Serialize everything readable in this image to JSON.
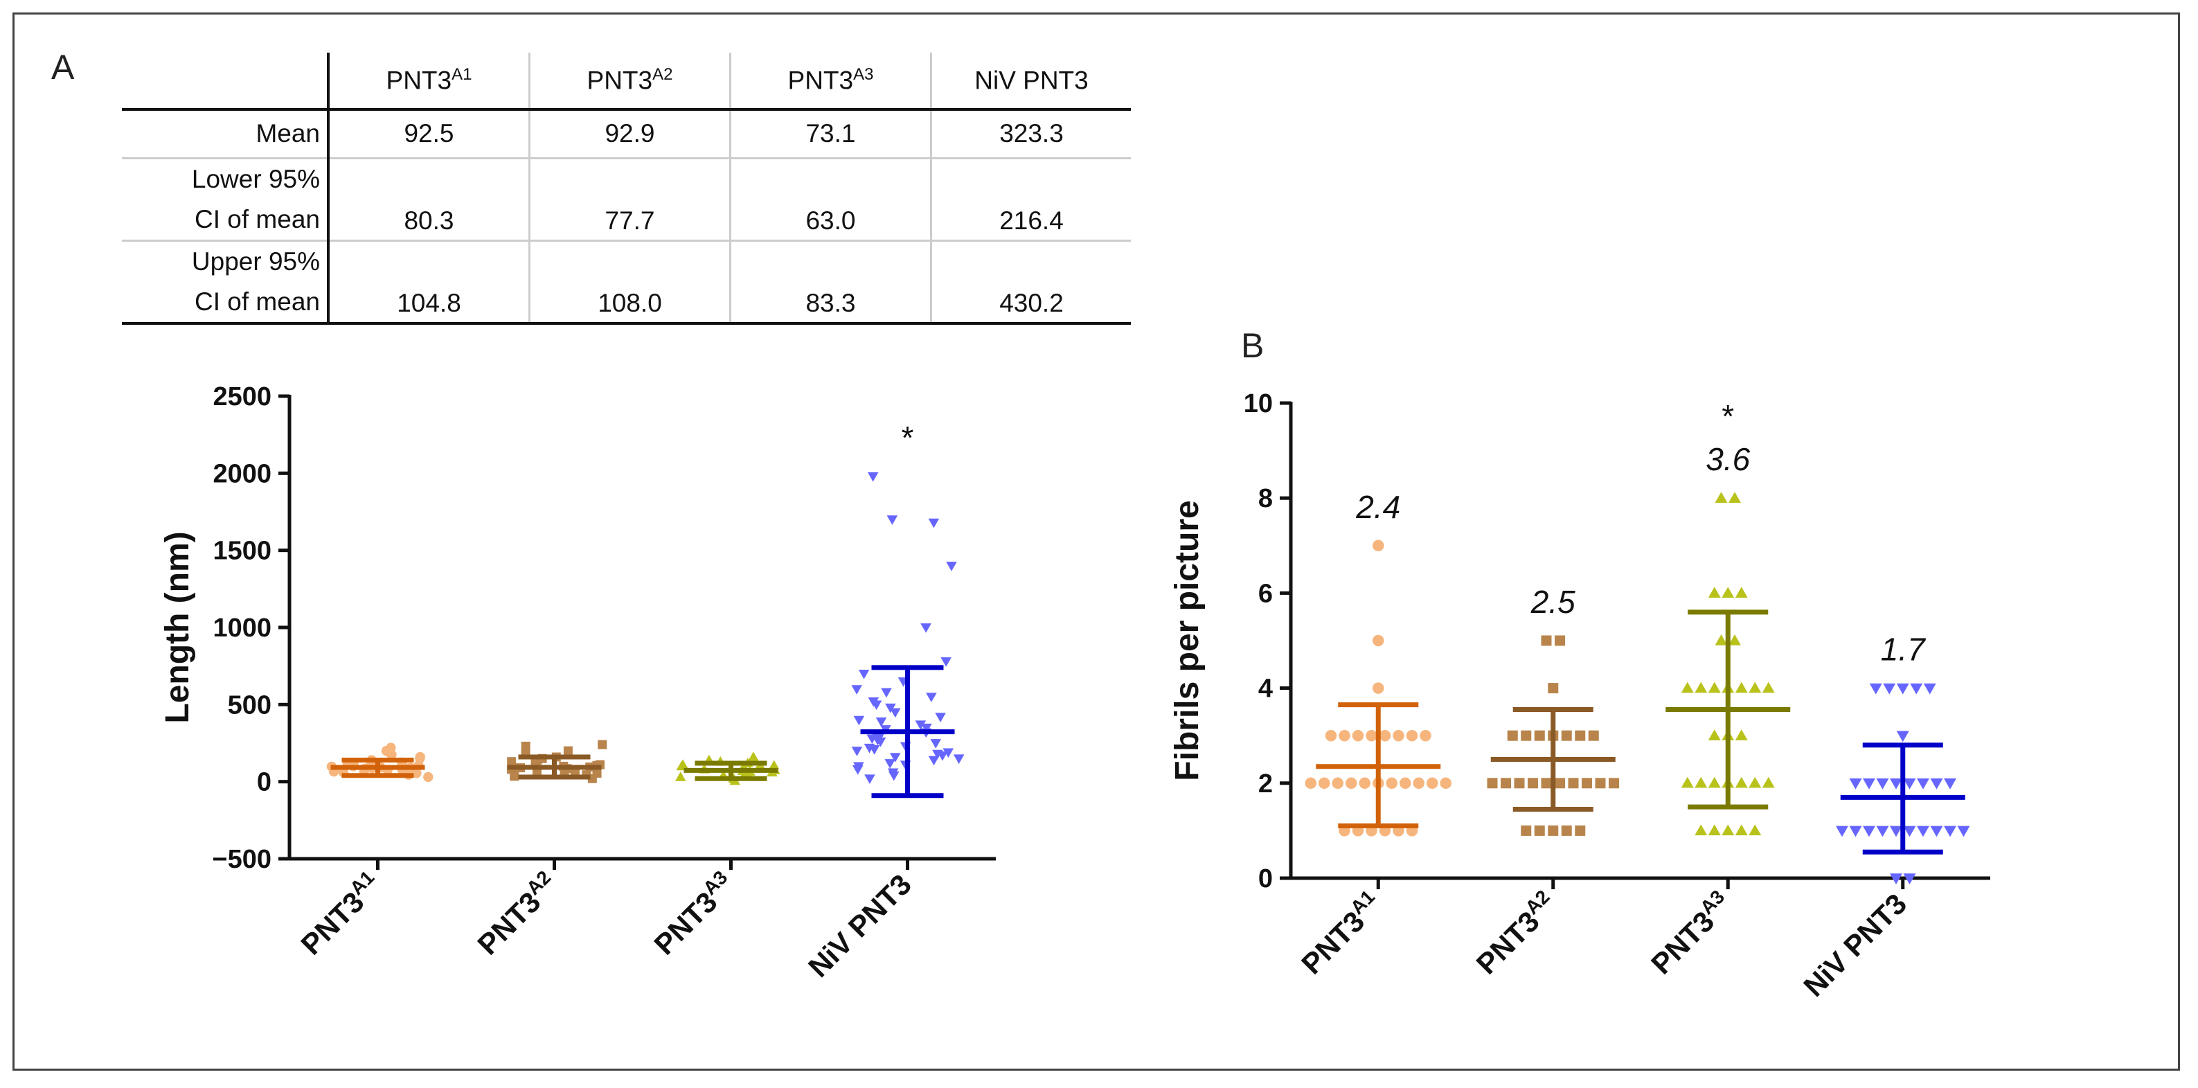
{
  "panels": {
    "a_label": "A",
    "b_label": "B"
  },
  "table": {
    "columns": [
      {
        "base": "PNT3",
        "sup": "A1"
      },
      {
        "base": "PNT3",
        "sup": "A2"
      },
      {
        "base": "PNT3",
        "sup": "A3"
      },
      {
        "base": "NiV PNT3",
        "sup": ""
      }
    ],
    "rows": [
      {
        "label_lines": [
          "Mean"
        ],
        "values": [
          "92.5",
          "92.9",
          "73.1",
          "323.3"
        ]
      },
      {
        "label_lines": [
          "Lower 95%",
          "CI of mean"
        ],
        "values": [
          "80.3",
          "77.7",
          "63.0",
          "216.4"
        ]
      },
      {
        "label_lines": [
          "Upper 95%",
          "CI of mean"
        ],
        "values": [
          "104.8",
          "108.0",
          "83.3",
          "430.2"
        ]
      }
    ]
  },
  "chart_data": [
    {
      "type": "scatter",
      "ylabel": "Length (nm)",
      "ylim": [
        -500,
        2500
      ],
      "yticks": [
        -500,
        0,
        500,
        1000,
        1500,
        2000,
        2500
      ],
      "ytick_labels": [
        "−500",
        "0",
        "500",
        "1000",
        "1500",
        "2000",
        "2500"
      ],
      "grid": false,
      "categories": [
        {
          "base": "PNT3",
          "sup": "A1"
        },
        {
          "base": "PNT3",
          "sup": "A2"
        },
        {
          "base": "PNT3",
          "sup": "A3"
        },
        {
          "base": "NiV PNT3",
          "sup": ""
        }
      ],
      "series": [
        {
          "color": "#f6b57c",
          "line_color": "#d2620a",
          "marker": "circle",
          "mean": 92.5,
          "sd_low": 40,
          "sd_high": 140,
          "points": [
            30,
            45,
            55,
            60,
            65,
            70,
            75,
            80,
            85,
            88,
            90,
            92,
            95,
            98,
            100,
            105,
            110,
            115,
            120,
            125,
            130,
            140,
            150,
            160,
            175,
            190,
            200,
            220
          ]
        },
        {
          "color": "#b8844b",
          "line_color": "#8a5a26",
          "marker": "square",
          "mean": 92.9,
          "sd_low": 30,
          "sd_high": 160,
          "points": [
            20,
            35,
            45,
            55,
            65,
            70,
            75,
            80,
            85,
            90,
            95,
            100,
            105,
            110,
            120,
            130,
            140,
            150,
            160,
            180,
            200,
            230,
            240
          ]
        },
        {
          "color": "#b9c21b",
          "line_color": "#7a7a00",
          "marker": "triangle-up",
          "mean": 73.1,
          "sd_low": 20,
          "sd_high": 120,
          "points": [
            5,
            20,
            30,
            40,
            50,
            55,
            60,
            65,
            70,
            75,
            80,
            85,
            90,
            95,
            100,
            105,
            110,
            120,
            130,
            140,
            160
          ]
        },
        {
          "color": "#6666ff",
          "line_color": "#0000c8",
          "marker": "triangle-down",
          "mean": 323.3,
          "sd_low": -90,
          "sd_high": 740,
          "annotation": "*",
          "points": [
            20,
            40,
            60,
            80,
            100,
            110,
            120,
            140,
            150,
            160,
            170,
            180,
            190,
            200,
            210,
            220,
            230,
            250,
            260,
            270,
            280,
            290,
            300,
            320,
            340,
            350,
            370,
            390,
            400,
            420,
            450,
            480,
            500,
            520,
            550,
            580,
            600,
            650,
            700,
            780,
            1000,
            1400,
            1680,
            1700,
            1980
          ]
        }
      ]
    },
    {
      "type": "scatter",
      "ylabel": "Fibrils per picture",
      "ylim": [
        0,
        10
      ],
      "yticks": [
        0,
        2,
        4,
        6,
        8,
        10
      ],
      "ytick_labels": [
        "0",
        "2",
        "4",
        "6",
        "8",
        "10"
      ],
      "grid": false,
      "categories": [
        {
          "base": "PNT3",
          "sup": "A1"
        },
        {
          "base": "PNT3",
          "sup": "A2"
        },
        {
          "base": "PNT3",
          "sup": "A3"
        },
        {
          "base": "NiV PNT3",
          "sup": ""
        }
      ],
      "series": [
        {
          "color": "#f6b57c",
          "line_color": "#d2620a",
          "marker": "circle",
          "mean": 2.35,
          "sd_low": 1.1,
          "sd_high": 3.65,
          "mean_label": "2.4",
          "points": [
            1,
            1,
            1,
            1,
            1,
            1,
            2,
            2,
            2,
            2,
            2,
            2,
            2,
            2,
            2,
            2,
            2,
            3,
            3,
            3,
            3,
            3,
            3,
            3,
            3,
            4,
            5,
            7
          ]
        },
        {
          "color": "#b8844b",
          "line_color": "#8a5a26",
          "marker": "square",
          "mean": 2.5,
          "sd_low": 1.45,
          "sd_high": 3.55,
          "mean_label": "2.5",
          "points": [
            1,
            1,
            1,
            1,
            1,
            2,
            2,
            2,
            2,
            2,
            2,
            2,
            2,
            2,
            2,
            3,
            3,
            3,
            3,
            3,
            3,
            3,
            4,
            5,
            5
          ]
        },
        {
          "color": "#b9c21b",
          "line_color": "#7a7a00",
          "marker": "triangle-up",
          "mean": 3.55,
          "sd_low": 1.5,
          "sd_high": 5.6,
          "mean_label": "3.6",
          "annotation": "*",
          "points": [
            1,
            1,
            1,
            1,
            1,
            2,
            2,
            2,
            2,
            2,
            2,
            2,
            3,
            3,
            3,
            4,
            4,
            4,
            4,
            4,
            4,
            4,
            5,
            5,
            6,
            6,
            6,
            8,
            8
          ]
        },
        {
          "color": "#6666ff",
          "line_color": "#0000c8",
          "marker": "triangle-down",
          "mean": 1.7,
          "sd_low": 0.55,
          "sd_high": 2.8,
          "mean_label": "1.7",
          "points": [
            0,
            0,
            1,
            1,
            1,
            1,
            1,
            1,
            1,
            1,
            1,
            1,
            2,
            2,
            2,
            2,
            2,
            2,
            2,
            2,
            3,
            4,
            4,
            4,
            4,
            4
          ]
        }
      ]
    }
  ]
}
